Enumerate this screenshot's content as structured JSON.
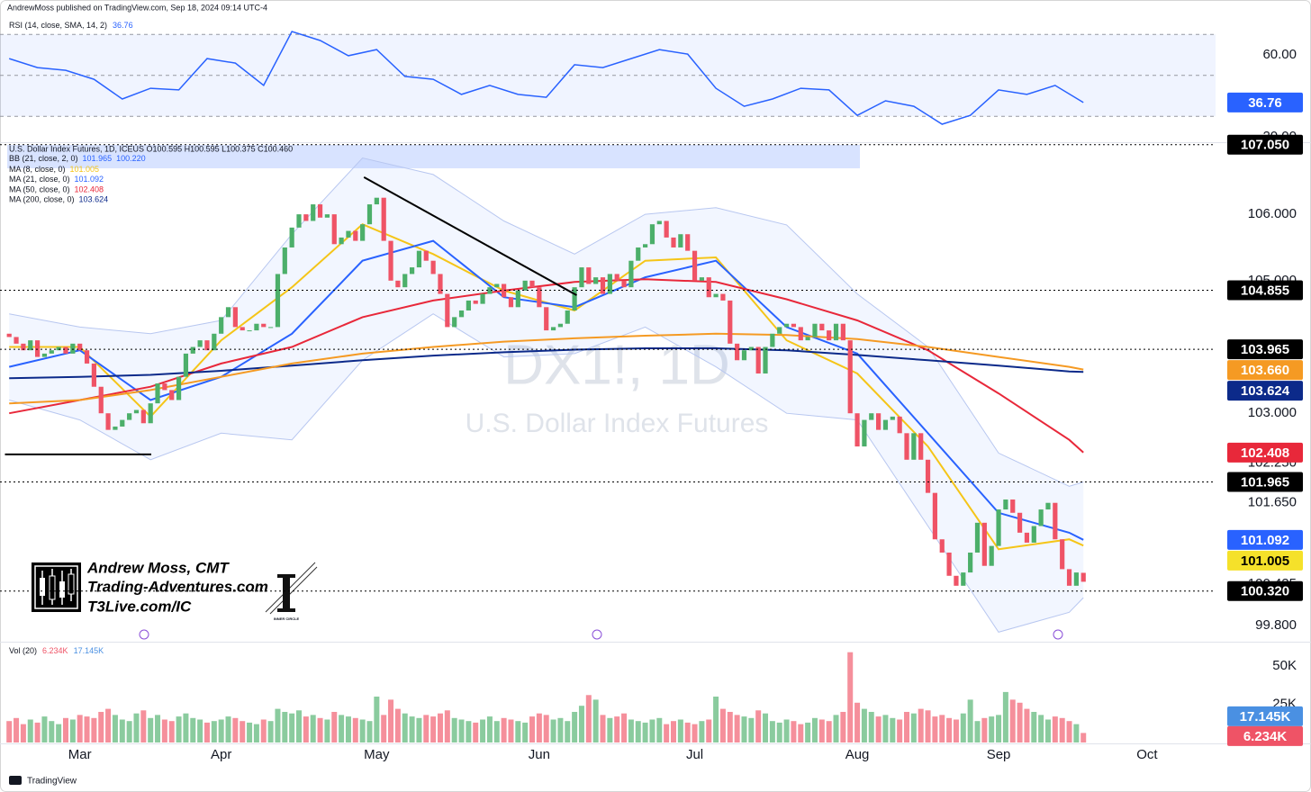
{
  "header": "AndrewMoss published on TradingView.com, Sep 18, 2024 09:14 UTC-4",
  "footer": "TradingView",
  "watermark": {
    "symbol": "DX1!, 1D",
    "name": "U.S. Dollar Index Futures"
  },
  "branding": {
    "name": "Andrew Moss, CMT",
    "site": "Trading-Adventures.com",
    "link": "T3Live.com/IC",
    "logo": "INNER CIRCLE"
  },
  "chart_data": {
    "type": "candlestick",
    "legend": "U.S. Dollar Index Futures, 1D, ICEUS O100.595 H100.595 L100.375 C100.460",
    "xlim": [
      -1.3,
      170.7
    ],
    "xticks": [
      {
        "value": 10,
        "label": "Mar"
      },
      {
        "value": 30,
        "label": "Apr"
      },
      {
        "value": 52,
        "label": "May"
      },
      {
        "value": 75,
        "label": "Jun"
      },
      {
        "value": 97,
        "label": "Jul"
      },
      {
        "value": 120,
        "label": "Aug"
      },
      {
        "value": 140,
        "label": "Sep"
      },
      {
        "value": 161,
        "label": "Oct"
      }
    ],
    "ylim": [
      99.57,
      107.06
    ],
    "yticks": [
      {
        "value": 106,
        "label": "106.000"
      },
      {
        "value": 105,
        "label": "105.000"
      },
      {
        "value": 103,
        "label": "103.000"
      },
      {
        "value": 102.25,
        "label": "102.250"
      },
      {
        "value": 101.65,
        "label": "101.650"
      },
      {
        "value": 100.425,
        "label": "100.425"
      },
      {
        "value": 99.8,
        "label": "99.800"
      }
    ],
    "candles": {
      "up_color": "#4caf6a",
      "down_color": "#ef5366",
      "open": [
        104.2,
        104.15,
        104.05,
        103.95,
        104.1,
        103.85,
        103.9,
        103.95,
        104.0,
        103.9,
        104.05,
        103.95,
        103.75,
        103.4,
        103.0,
        102.75,
        102.8,
        102.9,
        103.0,
        103.05,
        102.85,
        103.15,
        103.45,
        103.35,
        103.2,
        103.55,
        103.9,
        104.0,
        104.1,
        103.95,
        104.2,
        104.45,
        104.6,
        104.3,
        104.25,
        104.25,
        104.35,
        104.3,
        104.3,
        105.1,
        105.5,
        105.8,
        106.0,
        105.9,
        106.15,
        105.95,
        106.0,
        105.55,
        105.65,
        105.75,
        105.6,
        105.85,
        106.15,
        106.25,
        105.6,
        105.0,
        104.9,
        105.1,
        105.2,
        105.45,
        105.3,
        105.1,
        104.8,
        104.3,
        104.45,
        104.55,
        104.7,
        104.65,
        104.8,
        104.9,
        104.95,
        104.75,
        104.6,
        104.85,
        105.0,
        104.9,
        104.6,
        104.25,
        104.3,
        104.35,
        104.55,
        104.9,
        105.2,
        104.95,
        105.05,
        104.8,
        105.1,
        105.0,
        104.9,
        105.3,
        105.5,
        105.55,
        105.85,
        105.9,
        105.65,
        105.5,
        105.7,
        105.45,
        105.0,
        105.05,
        104.75,
        104.8,
        104.7,
        104.05,
        103.8,
        103.95,
        104.0,
        103.6,
        104.0,
        104.2,
        104.3,
        104.35,
        104.3,
        104.1,
        104.15,
        104.35,
        104.25,
        104.1,
        104.35,
        104.1,
        103.0,
        102.5,
        102.9,
        103.0,
        102.75,
        102.9,
        102.95,
        102.7,
        102.3,
        102.7,
        102.3,
        101.8,
        101.1,
        100.9,
        100.55,
        100.4,
        100.6,
        100.9,
        101.35,
        100.7,
        101.0,
        101.55,
        101.7,
        101.5,
        101.2,
        101.05,
        101.3,
        101.55,
        101.65,
        101.1,
        100.65,
        100.4,
        100.595
      ],
      "close": [
        104.15,
        104.05,
        103.95,
        104.1,
        103.85,
        103.9,
        103.95,
        104.0,
        103.9,
        104.05,
        103.95,
        103.75,
        103.4,
        103.0,
        102.75,
        102.8,
        102.9,
        103.0,
        103.05,
        102.85,
        103.15,
        103.45,
        103.35,
        103.2,
        103.55,
        103.9,
        104.0,
        104.1,
        103.95,
        104.2,
        104.45,
        104.6,
        104.3,
        104.25,
        104.25,
        104.35,
        104.3,
        104.3,
        105.1,
        105.5,
        105.8,
        106.0,
        105.9,
        106.15,
        105.95,
        106.0,
        105.55,
        105.65,
        105.75,
        105.6,
        105.85,
        106.15,
        106.25,
        105.6,
        105.0,
        104.9,
        105.1,
        105.2,
        105.45,
        105.3,
        105.1,
        104.8,
        104.3,
        104.45,
        104.55,
        104.7,
        104.65,
        104.8,
        104.9,
        104.95,
        104.75,
        104.6,
        104.85,
        105.0,
        104.9,
        104.6,
        104.25,
        104.3,
        104.35,
        104.55,
        104.9,
        105.2,
        104.95,
        105.05,
        104.8,
        105.1,
        105.0,
        104.9,
        105.3,
        105.5,
        105.55,
        105.85,
        105.9,
        105.65,
        105.5,
        105.7,
        105.45,
        105.0,
        105.05,
        104.75,
        104.8,
        104.7,
        104.05,
        103.8,
        103.95,
        104.0,
        103.6,
        104.0,
        104.2,
        104.3,
        104.35,
        104.3,
        104.1,
        104.15,
        104.35,
        104.25,
        104.1,
        104.35,
        104.1,
        103.0,
        102.5,
        102.9,
        103.0,
        102.75,
        102.9,
        102.95,
        102.7,
        102.3,
        102.7,
        102.3,
        101.8,
        101.1,
        100.9,
        100.55,
        100.4,
        100.6,
        100.9,
        101.35,
        100.7,
        101.0,
        101.55,
        101.7,
        101.5,
        101.2,
        101.05,
        101.3,
        101.55,
        101.65,
        101.1,
        100.65,
        100.4,
        100.6,
        100.46
      ]
    },
    "bollinger": {
      "name": "BB (21, close, 2, 0)",
      "color": "#2962ff",
      "labels": [
        "101.965",
        "100.220"
      ],
      "x": [
        0,
        10,
        20,
        30,
        40,
        50,
        60,
        70,
        80,
        90,
        100,
        110,
        120,
        130,
        140,
        150,
        152
      ],
      "upper": [
        104.5,
        104.3,
        104.2,
        104.4,
        105.7,
        106.85,
        106.6,
        105.9,
        105.4,
        106.0,
        106.1,
        105.84,
        104.8,
        104.0,
        102.4,
        101.9,
        101.965
      ],
      "lower": [
        103.2,
        102.9,
        102.3,
        102.7,
        102.6,
        103.8,
        104.5,
        103.85,
        103.9,
        104.3,
        103.7,
        103.0,
        102.9,
        101.3,
        99.7,
        100.0,
        100.22
      ]
    },
    "series": [
      {
        "name": "MA (8, close, 0)",
        "color": "#f5c518",
        "label": "101.005",
        "x": [
          0,
          10,
          20,
          30,
          40,
          50,
          60,
          70,
          80,
          90,
          100,
          110,
          120,
          130,
          140,
          150,
          152
        ],
        "values": [
          104.0,
          104.0,
          102.95,
          104.1,
          104.9,
          105.85,
          105.4,
          104.85,
          104.55,
          105.3,
          105.35,
          104.1,
          103.6,
          102.5,
          100.95,
          101.1,
          101.005
        ]
      },
      {
        "name": "MA (21, close, 0)",
        "color": "#2962ff",
        "label": "101.092",
        "x": [
          0,
          10,
          20,
          30,
          40,
          50,
          60,
          70,
          80,
          90,
          100,
          110,
          120,
          130,
          140,
          150,
          152
        ],
        "values": [
          103.7,
          103.95,
          103.2,
          103.55,
          104.2,
          105.3,
          105.6,
          104.75,
          104.6,
          105.05,
          105.3,
          104.3,
          103.9,
          102.7,
          101.5,
          101.2,
          101.092
        ]
      },
      {
        "name": "MA (50, close, 0)",
        "color": "#e8283a",
        "label": "102.408",
        "x": [
          0,
          10,
          20,
          30,
          40,
          50,
          60,
          70,
          80,
          90,
          100,
          110,
          120,
          130,
          140,
          150,
          152
        ],
        "values": [
          103.0,
          103.2,
          103.4,
          103.75,
          104.0,
          104.45,
          104.7,
          104.85,
          104.98,
          105.02,
          104.98,
          104.72,
          104.4,
          103.95,
          103.3,
          102.6,
          102.408
        ]
      },
      {
        "name": "MA (200, close, 0)",
        "color": "#0c2a8a",
        "label": "103.624",
        "x": [
          0,
          10,
          20,
          30,
          40,
          50,
          60,
          70,
          80,
          90,
          100,
          110,
          120,
          130,
          140,
          150,
          152
        ],
        "values": [
          103.53,
          103.55,
          103.58,
          103.64,
          103.72,
          103.8,
          103.87,
          103.92,
          103.96,
          103.98,
          103.98,
          103.95,
          103.88,
          103.8,
          103.72,
          103.63,
          103.624
        ]
      },
      {
        "color": "#f59a23",
        "x": [
          0,
          10,
          20,
          30,
          40,
          50,
          60,
          70,
          80,
          90,
          100,
          110,
          120,
          130,
          140,
          150,
          152
        ],
        "values": [
          103.15,
          103.2,
          103.35,
          103.55,
          103.75,
          103.9,
          104.0,
          104.08,
          104.13,
          104.17,
          104.2,
          104.18,
          104.12,
          104.0,
          103.85,
          103.7,
          103.66
        ]
      }
    ],
    "price_labels": [
      {
        "value": 107.05,
        "label": "107.050",
        "color": "#000000",
        "dotted": true
      },
      {
        "value": 104.855,
        "label": "104.855",
        "color": "#000000",
        "dotted": true
      },
      {
        "value": 103.965,
        "label": "103.965",
        "color": "#000000",
        "dotted": true
      },
      {
        "value": 103.66,
        "label": "103.660",
        "color": "#f59a23"
      },
      {
        "value": 103.624,
        "label": "103.624",
        "color": "#0c2a8a"
      },
      {
        "value": 102.408,
        "label": "102.408",
        "color": "#e8283a"
      },
      {
        "value": 101.965,
        "label": "101.965",
        "color": "#000000",
        "dotted": true
      },
      {
        "value": 101.092,
        "label": "101.092",
        "color": "#2962ff"
      },
      {
        "value": 101.005,
        "label": "101.005",
        "color": "#f5e12a",
        "text_color": "#000000"
      },
      {
        "value": 100.32,
        "label": "100.320",
        "color": "#000000",
        "dotted": true
      }
    ],
    "trendlines": [
      {
        "x": [
          50.2,
          80.3
        ],
        "values": [
          106.56,
          104.78
        ]
      },
      {
        "x": [
          -0.6,
          20.1
        ],
        "values": [
          102.38,
          102.38
        ]
      }
    ],
    "rsi": {
      "name": "RSI (14, close, SMA, 14, 2)",
      "color": "#2962ff",
      "label": "36.76",
      "ylim": [
        17.4,
        78
      ],
      "yticks": [
        {
          "value": 60,
          "label": "60.00"
        },
        {
          "value": 20,
          "label": "20.00"
        }
      ],
      "band": [
        30,
        70
      ],
      "midline": 50,
      "x": [
        0,
        4,
        8,
        12,
        16,
        20,
        24,
        28,
        32,
        36,
        40,
        44,
        48,
        52,
        56,
        60,
        64,
        68,
        72,
        76,
        80,
        84,
        88,
        92,
        96,
        100,
        104,
        108,
        112,
        116,
        120,
        124,
        128,
        132,
        136,
        140,
        144,
        148,
        152
      ],
      "values": [
        58.2,
        53.8,
        52.5,
        48.1,
        38.5,
        43.7,
        42.9,
        58.2,
        56.0,
        45.1,
        71.4,
        67.0,
        59.6,
        62.6,
        49.5,
        48.1,
        40.7,
        45.1,
        40.7,
        39.3,
        55.2,
        53.8,
        58.2,
        62.6,
        60.4,
        43.7,
        34.9,
        38.5,
        43.7,
        42.9,
        30.5,
        37.6,
        34.9,
        26.2,
        30.5,
        42.9,
        40.7,
        45.1,
        36.76
      ]
    },
    "volume": {
      "name": "Vol (20)",
      "label": "6.234K",
      "average": 17.145,
      "average_label": "17.145K",
      "average_color": "#4a90e2",
      "ylim": [
        0,
        64.7
      ],
      "yticks": [
        {
          "value": 50,
          "label": "50K"
        },
        {
          "value": 25,
          "label": "25K"
        }
      ],
      "values": [
        14,
        16,
        12,
        15,
        13,
        17,
        14,
        12,
        16,
        15,
        18,
        17,
        16,
        20,
        22,
        18,
        15,
        14,
        19,
        21,
        16,
        18,
        15,
        14,
        17,
        19,
        16,
        15,
        13,
        14,
        15,
        17,
        16,
        14,
        13,
        12,
        15,
        14,
        22,
        20,
        19,
        21,
        17,
        18,
        16,
        15,
        20,
        18,
        17,
        16,
        15,
        14,
        30,
        18,
        28,
        22,
        19,
        17,
        16,
        18,
        17,
        19,
        21,
        16,
        15,
        14,
        13,
        15,
        17,
        14,
        16,
        15,
        14,
        13,
        17,
        19,
        18,
        15,
        16,
        14,
        20,
        24,
        31,
        28,
        18,
        16,
        17,
        19,
        15,
        14,
        13,
        15,
        16,
        12,
        14,
        15,
        13,
        12,
        14,
        15,
        30,
        22,
        20,
        18,
        17,
        16,
        21,
        19,
        14,
        13,
        15,
        14,
        12,
        13,
        16,
        15,
        14,
        18,
        20,
        59,
        26,
        22,
        20,
        17,
        18,
        16,
        15,
        20,
        19,
        22,
        21,
        17,
        18,
        16,
        15,
        19,
        28,
        14,
        16,
        17,
        18,
        33,
        28,
        26,
        22,
        20,
        18,
        15,
        17,
        16,
        14,
        12,
        6.234
      ]
    }
  }
}
